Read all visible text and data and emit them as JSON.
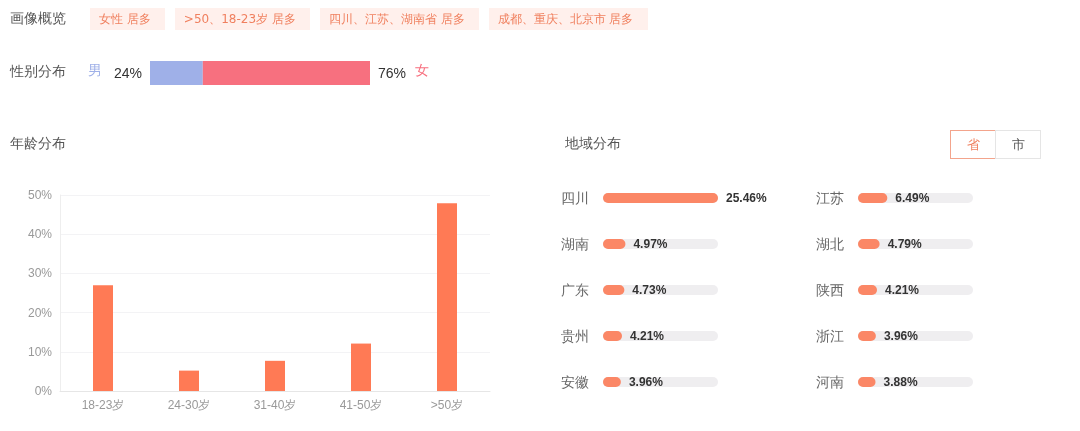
{
  "chart_data": [
    {
      "type": "other",
      "title": "画像概览",
      "annotations": [
        "女性 居多",
        ">50、18-23岁 居多",
        "四川、江苏、湖南省 居多",
        "成都、重庆、北京市 居多"
      ]
    },
    {
      "type": "bar",
      "orientation": "horizontal",
      "stacked": true,
      "ylabel": "性别分布",
      "categories": [
        null
      ],
      "legend": false,
      "series": [
        {
          "name": "男",
          "color": "#9fb0e8",
          "values": [
            24
          ],
          "value_labels": [
            "24%"
          ]
        },
        {
          "name": "女",
          "color": "#f7707f",
          "values": [
            76
          ],
          "value_labels": [
            "76%"
          ]
        }
      ]
    },
    {
      "type": "bar",
      "title": "年龄分布",
      "categories": [
        "18-23岁",
        "24-30岁",
        "31-40岁",
        "41-50岁",
        ">50岁"
      ],
      "values": [
        27,
        5.2,
        7.7,
        12.1,
        47.9
      ],
      "color": "#ff7a55",
      "ylim": [
        0,
        50
      ],
      "yticks": [
        {
          "value": 0,
          "label": "0%"
        },
        {
          "value": 10,
          "label": "10%"
        },
        {
          "value": 20,
          "label": "20%"
        },
        {
          "value": 30,
          "label": "30%"
        },
        {
          "value": 40,
          "label": "40%"
        },
        {
          "value": 50,
          "label": "50%"
        }
      ],
      "grid": "y"
    },
    {
      "type": "bar",
      "orientation": "horizontal",
      "title": "地域分布",
      "annotations": [
        "省",
        "市"
      ],
      "categories": [
        "四川",
        "湖南",
        "广东",
        "贵州",
        "安徽"
      ],
      "values": [
        25.46,
        4.97,
        4.73,
        4.21,
        3.96
      ],
      "color": "#fb8766",
      "data_labels": true,
      "value_labels": [
        "25.46%",
        "4.97%",
        "4.73%",
        "4.21%",
        "3.96%"
      ]
    },
    {
      "type": "bar",
      "orientation": "horizontal",
      "categories": [
        "江苏",
        "湖北",
        "陕西",
        "浙江",
        "河南"
      ],
      "values": [
        6.49,
        4.79,
        4.21,
        3.96,
        3.88
      ],
      "color": "#fb8766",
      "data_labels": true,
      "value_labels": [
        "6.49%",
        "4.79%",
        "4.21%",
        "3.96%",
        "3.88%"
      ]
    }
  ]
}
